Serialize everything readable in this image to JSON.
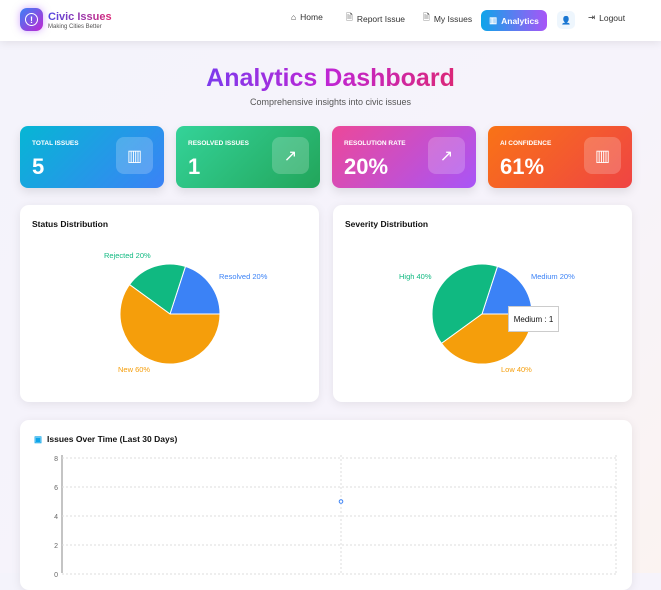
{
  "nav": {
    "brand": "Civic Issues",
    "tagline": "Making Cities Better",
    "items": [
      {
        "label": "Home",
        "icon": "home-icon"
      },
      {
        "label": "Report Issue",
        "icon": "document-icon"
      },
      {
        "label": "My Issues",
        "icon": "document-icon"
      }
    ],
    "active": "Analytics",
    "logout": "Logout"
  },
  "header": {
    "title": "Analytics Dashboard",
    "subtitle": "Comprehensive insights into civic issues"
  },
  "stats": [
    {
      "label": "TOTAL ISSUES",
      "value": "5",
      "icon": "bar-chart-icon",
      "colors": [
        "#06b6d4",
        "#3b82f6"
      ]
    },
    {
      "label": "RESOLVED ISSUES",
      "value": "1",
      "icon": "trending-up-icon",
      "colors": [
        "#34d399",
        "#22a55a"
      ]
    },
    {
      "label": "RESOLUTION RATE",
      "value": "20%",
      "icon": "trending-up-icon",
      "colors": [
        "#ec4899",
        "#a855f7"
      ]
    },
    {
      "label": "AI CONFIDENCE",
      "value": "61%",
      "icon": "bar-chart-icon",
      "colors": [
        "#f97316",
        "#ef4444"
      ]
    }
  ],
  "chart_data": [
    {
      "type": "pie",
      "title": "Status Distribution",
      "slices": [
        {
          "label": "Resolved 20%",
          "name": "Resolved",
          "value": 1,
          "color": "#3b82f6"
        },
        {
          "label": "Rejected 20%",
          "name": "Rejected",
          "value": 1,
          "color": "#10b981"
        },
        {
          "label": "New 60%",
          "name": "New",
          "value": 3,
          "color": "#f59e0b"
        }
      ]
    },
    {
      "type": "pie",
      "title": "Severity Distribution",
      "slices": [
        {
          "label": "Medium 20%",
          "name": "Medium",
          "value": 1,
          "color": "#3b82f6"
        },
        {
          "label": "High 40%",
          "name": "High",
          "value": 2,
          "color": "#10b981"
        },
        {
          "label": "Low 40%",
          "name": "Low",
          "value": 2,
          "color": "#f59e0b"
        }
      ],
      "tooltip": "Medium : 1"
    },
    {
      "type": "line",
      "title": "Issues Over Time (Last 30 Days)",
      "ylim": [
        0,
        8
      ],
      "yticks": [
        "8",
        "6",
        "4",
        "2",
        "0"
      ],
      "points": [
        {
          "y": 5
        }
      ],
      "color": "#3b82f6",
      "grid": true
    }
  ]
}
